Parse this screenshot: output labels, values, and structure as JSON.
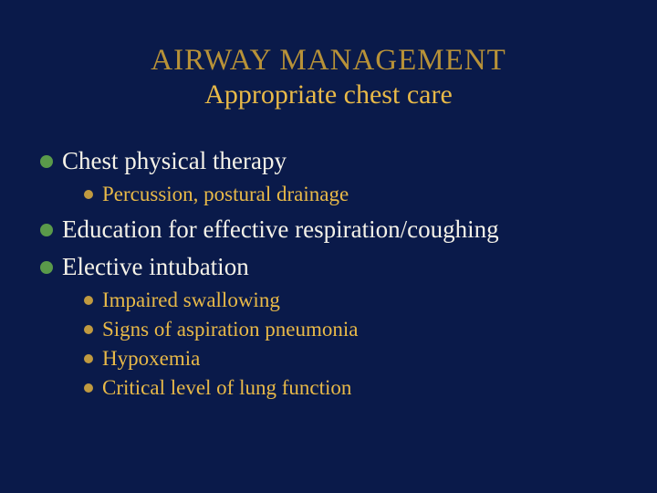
{
  "colors": {
    "background": "#0a1a4a",
    "title": "#b89238",
    "subtitle": "#e8b948",
    "bullet_l1_dot": "#5a9a4a",
    "bullet_l1_text": "#f5f2e8",
    "bullet_l2_dot": "#c09a40",
    "bullet_l2_text": "#e8b948"
  },
  "typography": {
    "title_size": 33,
    "subtitle_size": 30,
    "l1_size": 27,
    "l2_size": 23
  },
  "title": "AIRWAY MANAGEMENT",
  "subtitle": "Appropriate chest care",
  "items": [
    {
      "text": "Chest physical therapy",
      "sub": [
        "Percussion, postural drainage"
      ]
    },
    {
      "text": "Education for effective respiration/coughing",
      "sub": []
    },
    {
      "text": "Elective intubation",
      "sub": [
        "Impaired swallowing",
        "Signs of aspiration pneumonia",
        "Hypoxemia",
        "Critical level of lung function"
      ]
    }
  ]
}
